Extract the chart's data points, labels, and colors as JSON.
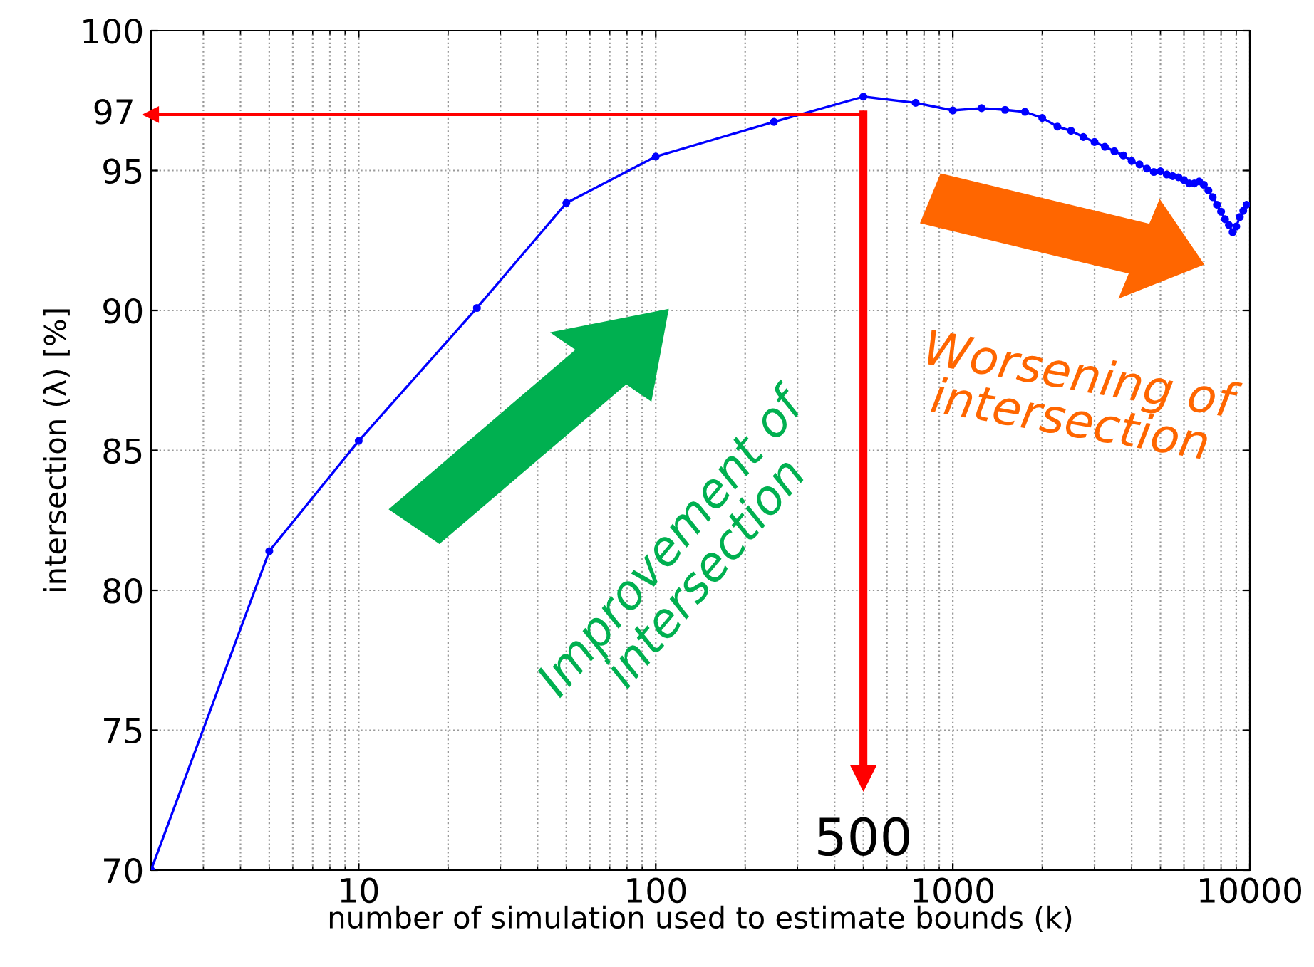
{
  "chart_data": {
    "type": "line",
    "xlabel": "number of simulation used to estimate bounds (k)",
    "ylabel": "intersection (λ) [%]",
    "x": [
      2,
      5,
      10,
      25,
      50,
      100,
      250,
      500,
      750,
      1000,
      1250,
      1500,
      1750,
      2000,
      2250,
      2500,
      2750,
      3000,
      3250,
      3500,
      3750,
      4000,
      4250,
      4500,
      4750,
      5000,
      5250,
      5500,
      5750,
      6000,
      6250,
      6500,
      6750,
      7000,
      7250,
      7500,
      7750,
      8000,
      8250,
      8500,
      8750,
      9000,
      9250,
      9500,
      9750
    ],
    "series": [
      {
        "color": "#0000ff",
        "values": [
          70,
          81.4,
          85.34,
          90.09,
          93.84,
          95.5,
          96.74,
          97.64,
          97.42,
          97.15,
          97.23,
          97.17,
          97.1,
          96.88,
          96.57,
          96.42,
          96.2,
          96.02,
          95.85,
          95.69,
          95.54,
          95.34,
          95.22,
          95.07,
          94.95,
          94.97,
          94.86,
          94.8,
          94.76,
          94.66,
          94.54,
          94.54,
          94.61,
          94.49,
          94.29,
          94.05,
          93.78,
          93.53,
          93.26,
          93.05,
          92.8,
          93.0,
          93.34,
          93.56,
          93.78
        ]
      }
    ],
    "log": "x",
    "xlim": [
      2,
      10000
    ],
    "xticks": [
      10,
      100,
      1000,
      10000
    ],
    "ylim": [
      70,
      100
    ],
    "yticks": [
      70,
      75,
      80,
      85,
      90,
      95,
      100
    ],
    "grid": true,
    "marker": "circle",
    "line_style": "solid",
    "ref_lines": [
      {
        "axis": "y",
        "value": 97,
        "label": "97",
        "color": "#ff0000"
      },
      {
        "axis": "x",
        "value": 500,
        "label": "500",
        "color": "#ff0000"
      }
    ],
    "annotations": [
      "Improvement of\nintersection",
      "Worsening of\nintersection"
    ]
  }
}
